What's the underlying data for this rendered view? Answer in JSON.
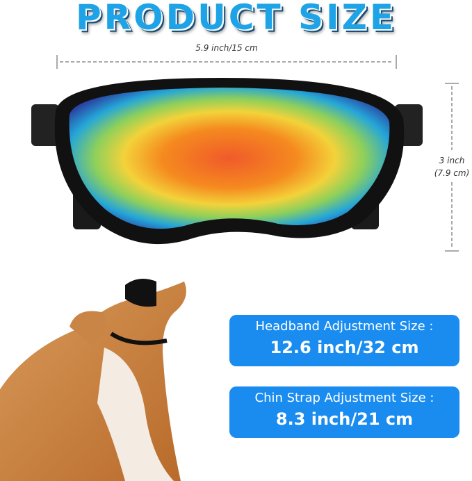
{
  "title": "PRODUCT SIZE",
  "width_label": "5.9 inch/15 cm",
  "height_label": {
    "line1": "3 inch",
    "line2": "(7.9 cm)"
  },
  "headband": {
    "label": "Headband Adjustment Size :",
    "value": "12.6 inch/32 cm"
  },
  "chin_strap": {
    "label": "Chin Strap Adjustment Size :",
    "value": "8.3 inch/21 cm"
  },
  "colors": {
    "title": "#1ea3e6",
    "box": "#1a8cf0"
  }
}
